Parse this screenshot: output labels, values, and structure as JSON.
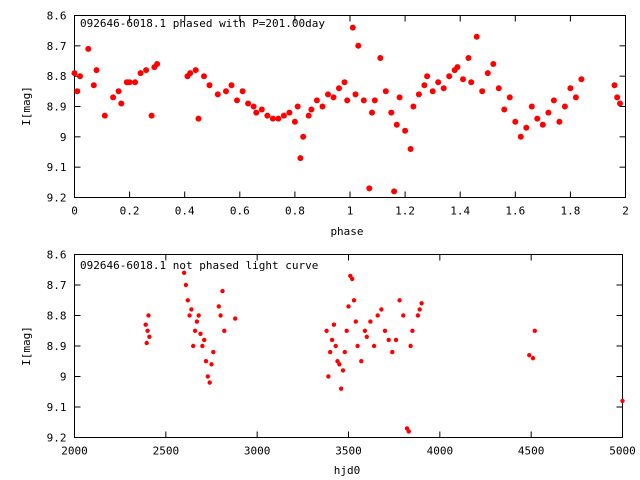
{
  "chart_data": [
    {
      "type": "scatter",
      "title": "092646-6018.1 phased with P=201.00day",
      "xlabel": "phase",
      "ylabel": "I[mag]",
      "xlim": [
        0,
        2
      ],
      "ylim": [
        8.6,
        9.2
      ],
      "y_inverted": true,
      "xticks": [
        "0",
        "0.2",
        "0.4",
        "0.6",
        "0.8",
        "1",
        "1.2",
        "1.4",
        "1.6",
        "1.8",
        "2"
      ],
      "yticks": [
        "8.6",
        "8.7",
        "8.8",
        "8.9",
        "9",
        "9.1",
        "9.2"
      ],
      "marker_color": "#ff0000",
      "grid": false,
      "x": [
        0.0,
        0.01,
        0.02,
        0.05,
        0.07,
        0.08,
        0.11,
        0.14,
        0.16,
        0.17,
        0.19,
        0.2,
        0.22,
        0.24,
        0.26,
        0.28,
        0.29,
        0.3,
        0.41,
        0.42,
        0.44,
        0.45,
        0.47,
        0.49,
        0.52,
        0.55,
        0.57,
        0.59,
        0.61,
        0.63,
        0.65,
        0.66,
        0.68,
        0.7,
        0.72,
        0.74,
        0.76,
        0.78,
        0.8,
        0.81,
        0.82,
        0.83,
        0.85,
        0.86,
        0.88,
        0.9,
        0.92,
        0.94,
        0.96,
        0.98,
        0.99,
        1.01,
        1.02,
        1.03,
        1.05,
        1.07,
        1.08,
        1.09,
        1.11,
        1.13,
        1.15,
        1.16,
        1.17,
        1.18,
        1.2,
        1.22,
        1.23,
        1.25,
        1.27,
        1.28,
        1.3,
        1.32,
        1.34,
        1.36,
        1.38,
        1.39,
        1.41,
        1.43,
        1.44,
        1.46,
        1.48,
        1.5,
        1.52,
        1.54,
        1.56,
        1.58,
        1.6,
        1.62,
        1.64,
        1.66,
        1.68,
        1.7,
        1.72,
        1.74,
        1.76,
        1.78,
        1.8,
        1.82,
        1.84,
        1.96,
        1.97,
        1.98
      ],
      "y": [
        8.79,
        8.85,
        8.8,
        8.71,
        8.83,
        8.78,
        8.93,
        8.87,
        8.85,
        8.89,
        8.82,
        8.82,
        8.82,
        8.79,
        8.78,
        8.93,
        8.77,
        8.76,
        8.8,
        8.79,
        8.78,
        8.94,
        8.8,
        8.83,
        8.86,
        8.85,
        8.83,
        8.88,
        8.85,
        8.89,
        8.9,
        8.92,
        8.91,
        8.93,
        8.94,
        8.94,
        8.93,
        8.92,
        8.95,
        8.9,
        9.07,
        9.0,
        8.93,
        8.91,
        8.88,
        8.9,
        8.86,
        8.87,
        8.84,
        8.82,
        8.88,
        8.64,
        8.86,
        8.7,
        8.88,
        9.17,
        8.92,
        8.88,
        8.74,
        8.85,
        8.92,
        9.18,
        8.96,
        8.87,
        8.98,
        9.04,
        8.9,
        8.86,
        8.83,
        8.8,
        8.85,
        8.82,
        8.84,
        8.8,
        8.78,
        8.77,
        8.81,
        8.74,
        8.82,
        8.67,
        8.85,
        8.79,
        8.76,
        8.84,
        8.91,
        8.87,
        8.95,
        9.0,
        8.97,
        8.9,
        8.94,
        8.96,
        8.92,
        8.88,
        8.95,
        8.9,
        8.84,
        8.87,
        8.81,
        8.83,
        8.87,
        8.89
      ]
    },
    {
      "type": "scatter",
      "title": "092646-6018.1 not phased light curve",
      "xlabel": "hjd0",
      "ylabel": "I[mag]",
      "xlim": [
        2000,
        5000
      ],
      "ylim": [
        8.6,
        9.2
      ],
      "y_inverted": true,
      "xticks": [
        "2000",
        "2500",
        "3000",
        "3500",
        "4000",
        "4500",
        "5000"
      ],
      "yticks": [
        "8.6",
        "8.7",
        "8.8",
        "8.9",
        "9",
        "9.1",
        "9.2"
      ],
      "marker_color": "#ff0000",
      "grid": false,
      "x": [
        2390,
        2395,
        2400,
        2405,
        2410,
        2600,
        2610,
        2620,
        2630,
        2640,
        2650,
        2660,
        2670,
        2680,
        2690,
        2700,
        2710,
        2720,
        2730,
        2740,
        2750,
        2760,
        2790,
        2800,
        2810,
        2820,
        2880,
        3380,
        3390,
        3400,
        3410,
        3420,
        3430,
        3440,
        3450,
        3460,
        3470,
        3480,
        3490,
        3500,
        3510,
        3520,
        3530,
        3540,
        3550,
        3570,
        3590,
        3600,
        3620,
        3640,
        3660,
        3680,
        3700,
        3720,
        3740,
        3760,
        3780,
        3800,
        3820,
        3830,
        3840,
        3850,
        3880,
        3890,
        3900,
        4490,
        4510,
        4520,
        5000
      ],
      "y": [
        8.83,
        8.89,
        8.85,
        8.8,
        8.87,
        8.66,
        8.7,
        8.75,
        8.8,
        8.78,
        8.9,
        8.85,
        8.82,
        8.8,
        8.86,
        8.9,
        8.88,
        8.95,
        9.0,
        9.02,
        8.96,
        8.92,
        8.77,
        8.8,
        8.72,
        8.85,
        8.81,
        8.85,
        9.0,
        8.92,
        8.88,
        8.83,
        8.9,
        8.95,
        8.96,
        9.04,
        8.98,
        8.92,
        8.85,
        8.77,
        8.67,
        8.68,
        8.75,
        8.82,
        8.9,
        8.95,
        8.85,
        8.87,
        8.82,
        8.9,
        8.8,
        8.78,
        8.85,
        8.88,
        8.92,
        8.88,
        8.75,
        8.8,
        9.17,
        9.18,
        8.9,
        8.85,
        8.8,
        8.78,
        8.76,
        8.93,
        8.94,
        8.85,
        9.08
      ]
    }
  ]
}
